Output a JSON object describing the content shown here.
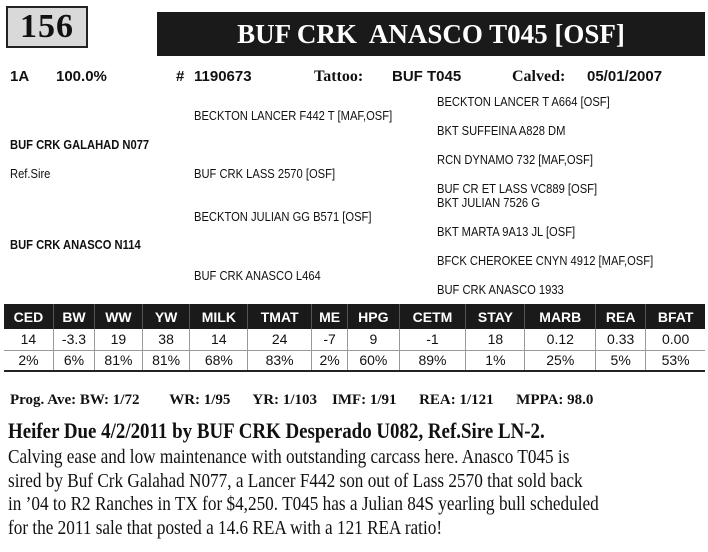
{
  "lot": "156",
  "animal_name": "BUF CRK  ANASCO T045 [OSF]",
  "info": {
    "grade": "1A",
    "percent": "100.0%",
    "reg_label": "#",
    "reg_no": "1190673",
    "tattoo_label": "Tattoo:",
    "tattoo": "BUF T045",
    "calved_label": "Calved:",
    "calved": "05/01/2007"
  },
  "pedigree": {
    "sire": "BUF CRK GALAHAD N077",
    "sire_note": "Ref.Sire",
    "dam": "BUF CRK ANASCO N114",
    "ss": "BECKTON LANCER F442 T [MAF,OSF]",
    "sd": "BUF CRK LASS 2570  [OSF]",
    "ds": "BECKTON JULIAN GG B571 [OSF]",
    "dd": "BUF CRK ANASCO L464",
    "sss": "BECKTON LANCER T A664 [OSF]",
    "ssd": "BKT SUFFEINA A828 DM",
    "sds": "RCN DYNAMO 732 [MAF,OSF]",
    "sdd": "BUF CR ET LASS VC889  [OSF]",
    "dss": "BKT JULIAN 7526 G",
    "dsd": "BKT MARTA 9A13 JL [OSF]",
    "dds": "BFCK CHEROKEE CNYN 4912 [MAF,OSF]",
    "ddd": "BUF CRK ANASCO 1933"
  },
  "epd": {
    "headers": [
      "CED",
      "BW",
      "WW",
      "YW",
      "MILK",
      "TMAT",
      "ME",
      "HPG",
      "CETM",
      "STAY",
      "MARB",
      "REA",
      "BFAT"
    ],
    "values": [
      "14",
      "-3.3",
      "19",
      "38",
      "14",
      "24",
      "-7",
      "9",
      "-1",
      "18",
      "0.12",
      "0.33",
      "0.00"
    ],
    "percentiles": [
      "2%",
      "6%",
      "81%",
      "81%",
      "68%",
      "83%",
      "2%",
      "60%",
      "89%",
      "1%",
      "25%",
      "5%",
      "53%"
    ]
  },
  "progeny": {
    "bw_label": "Prog. Ave: BW:",
    "bw": "1/72",
    "wr_label": "WR:",
    "wr": "1/95",
    "yr_label": "YR:",
    "yr": "1/103",
    "imf_label": "IMF:",
    "imf": "1/91",
    "rea_label": "REA:",
    "rea": "1/121",
    "mppa_label": "MPPA:",
    "mppa": "98.0"
  },
  "headline": "Heifer Due 4/2/2011 by BUF CRK Desperado U082, Ref.Sire LN-2.",
  "description": [
    "Calving ease and low maintenance with outstanding carcass here.  Anasco T045 is",
    "sired by Buf Crk Galahad N077, a Lancer F442 son out of Lass 2570 that sold back",
    "in ’04 to R2 Ranches in TX for $4,250.  T045 has a Julian 84S yearling bull scheduled",
    "for the 2011 sale that posted a 14.6 REA with a 121 REA ratio!"
  ]
}
